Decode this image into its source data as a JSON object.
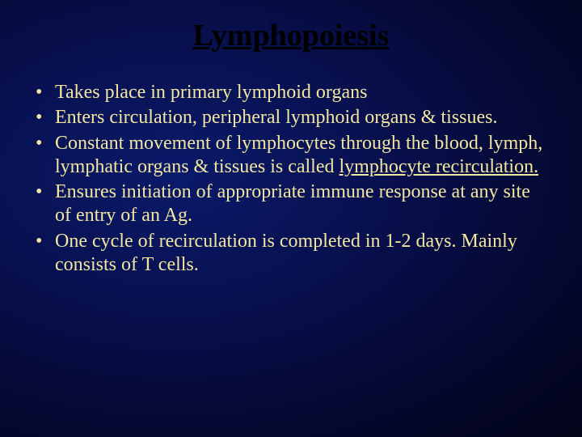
{
  "slide": {
    "title": "Lymphopoiesis",
    "title_color": "#000000",
    "title_fontsize": 38,
    "title_underline": true,
    "background_gradient": {
      "type": "radial",
      "stops": [
        "#0a1a6a",
        "#081050",
        "#050830",
        "#020418"
      ]
    },
    "body_text_color": "#f2e6a0",
    "body_fontsize": 24,
    "bullets": [
      {
        "text": "Takes place in primary lymphoid organs"
      },
      {
        "text": "Enters circulation, peripheral lymphoid organs & tissues."
      },
      {
        "pre": "Constant movement of lymphocytes through the blood, lymph, lymphatic organs & tissues is called ",
        "underlined": "lymphocyte recirculation."
      },
      {
        "text": "Ensures initiation of appropriate immune response at any site of entry of an Ag."
      },
      {
        "text": "One cycle of recirculation is completed in 1-2 days. Mainly consists of T cells."
      }
    ]
  }
}
